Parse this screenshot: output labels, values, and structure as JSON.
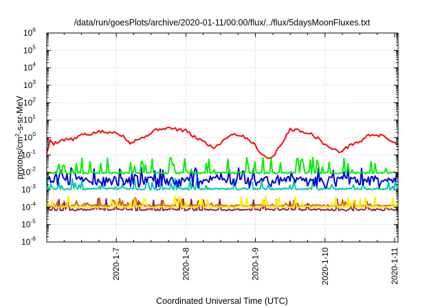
{
  "chart_data": {
    "type": "line",
    "title": "/data/run/goesPlots/archive/2020-01-11/00:00/flux/../flux/5daysMoonFluxes.txt",
    "xlabel": "Coordinated Universal Time (UTC)",
    "ylabel_parts": [
      "protons/cm",
      "2",
      "-s-sr-MeV"
    ],
    "y_scale": "log",
    "ylim_exponents": [
      -6,
      6
    ],
    "y_tick_base": "10",
    "y_tick_exponents": [
      "-6",
      "-5",
      "-4",
      "-3",
      "-2",
      "-1",
      "0",
      "1",
      "2",
      "3",
      "4",
      "5",
      "6"
    ],
    "x_ticks": [
      {
        "label": "2020-1-7",
        "day": 1.0
      },
      {
        "label": "2020-1-8",
        "day": 2.0
      },
      {
        "label": "2020-1-9",
        "day": 3.0
      },
      {
        "label": "2020-1-10",
        "day": 4.0
      },
      {
        "label": "2020-1-11",
        "day": 5.0
      }
    ],
    "xlim_days": [
      0.0,
      5.05
    ],
    "grid": true,
    "series": [
      {
        "color": "#ff0000",
        "kind": "smooth",
        "x": [
          0,
          0.05,
          0.1,
          0.2,
          0.3,
          0.4,
          0.5,
          0.6,
          0.7,
          0.8,
          0.9,
          1.0,
          1.1,
          1.2,
          1.3,
          1.4,
          1.5,
          1.6,
          1.7,
          1.8,
          1.9,
          2.0,
          2.1,
          2.2,
          2.3,
          2.4,
          2.5,
          2.6,
          2.7,
          2.8,
          2.9,
          3.0,
          3.1,
          3.2,
          3.3,
          3.4,
          3.5,
          3.6,
          3.7,
          3.8,
          3.9,
          4.0,
          4.1,
          4.2,
          4.3,
          4.4,
          4.5,
          4.6,
          4.7,
          4.8,
          4.9,
          5.0,
          5.05
        ],
        "y": [
          0.13,
          0.7,
          0.45,
          0.7,
          0.8,
          0.8,
          1.5,
          1.4,
          2.0,
          2.2,
          1.8,
          2.1,
          1.2,
          0.5,
          0.8,
          1.0,
          2.0,
          3.0,
          3.5,
          3.3,
          2.8,
          2.5,
          1.2,
          0.8,
          0.45,
          0.25,
          0.5,
          1.2,
          1.6,
          1.3,
          0.8,
          0.35,
          0.1,
          0.06,
          0.15,
          0.6,
          3.2,
          2.6,
          2.2,
          1.6,
          0.9,
          0.4,
          0.22,
          0.15,
          0.25,
          0.45,
          0.55,
          1.2,
          1.5,
          1.3,
          0.9,
          0.5,
          0.4
        ]
      },
      {
        "color": "#00ee00",
        "kind": "spiky",
        "base": 0.009,
        "amp": [
          1.5,
          8.0
        ],
        "seed": 11,
        "spikes": 55
      },
      {
        "color": "#0000dd",
        "kind": "noisy",
        "base": 0.0032,
        "amp": [
          0.4,
          6.0
        ],
        "seed": 23,
        "spikes": 70
      },
      {
        "color": "#00c8a8",
        "kind": "spiky",
        "base": 0.0011,
        "amp": [
          1.3,
          4.0
        ],
        "seed": 37,
        "spikes": 45
      },
      {
        "color": "#ffee00",
        "kind": "spiky",
        "base": 0.0001,
        "amp": [
          1.5,
          4.5
        ],
        "seed": 41,
        "spikes": 40
      },
      {
        "color": "#e06000",
        "kind": "spiky",
        "base": 0.00012,
        "amp": [
          1.2,
          3.0
        ],
        "seed": 53,
        "spikes": 30
      },
      {
        "color": "#8a2252",
        "kind": "spiky",
        "base": 7e-05,
        "amp": [
          1.5,
          4.5
        ],
        "seed": 67,
        "spikes": 40
      }
    ]
  }
}
